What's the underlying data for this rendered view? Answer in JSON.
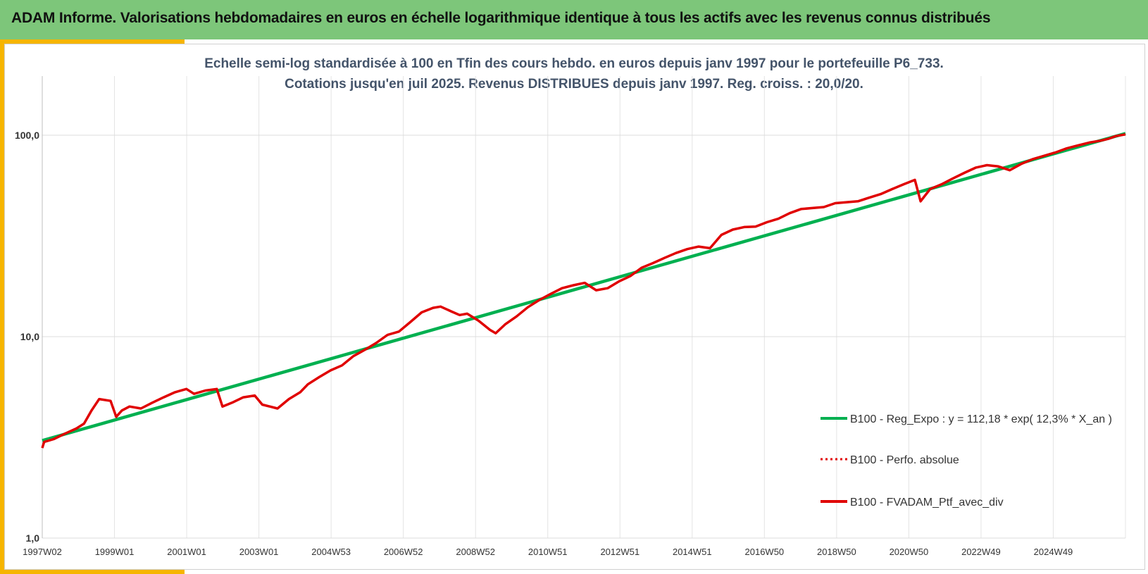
{
  "header": {
    "title": "ADAM Informe. Valorisations hebdomadaires en euros en échelle logarithmique identique à tous les actifs avec les revenus connus distribués"
  },
  "colors": {
    "banner": "#7dc67a",
    "accent": "#f6b500",
    "regression": "#00b050",
    "portfolio": "#e00000"
  },
  "chart_data": {
    "type": "line",
    "title_line1": "Echelle semi-log standardisée  à 100 en Tfin des cours hebdo.  en euros depuis janv 1997 pour le portefeuille P6_733.",
    "title_line2": "Cotations jusqu'en juil 2025. Revenus DISTRIBUES depuis janv 1997. Reg. croiss. : 20,0/20.",
    "y_scale": "log",
    "ylim": [
      1,
      100
    ],
    "y_ticks": [
      "1,0",
      "10,0",
      "100,0"
    ],
    "x_ticks": [
      "1997W02",
      "1999W01",
      "2001W01",
      "2003W01",
      "2004W53",
      "2006W52",
      "2008W52",
      "2010W51",
      "2012W51",
      "2014W51",
      "2016W50",
      "2018W50",
      "2020W50",
      "2022W49",
      "2024W49"
    ],
    "x_range": [
      1997.0,
      2025.55
    ],
    "grid": true,
    "legend_position": "bottom-right",
    "series": [
      {
        "name": "B100 - Reg_Expo : y = 112,18 * exp( 12,3% *  X_an )",
        "style": "solid",
        "x": [
          1997.0,
          2025.55
        ],
        "y": [
          3.05,
          102
        ]
      },
      {
        "name": "B100 - Perfo. absolue",
        "style": "dotted",
        "x": [],
        "y": []
      },
      {
        "name": "B100 - FVADAM_Ptf_avec_div",
        "style": "solid",
        "x": [
          1997.0,
          1997.05,
          1997.3,
          1997.6,
          1997.9,
          1998.1,
          1998.3,
          1998.5,
          1998.8,
          1998.95,
          1999.1,
          1999.3,
          1999.6,
          1999.9,
          2000.2,
          2000.5,
          2000.8,
          2001.0,
          2001.3,
          2001.6,
          2001.75,
          2002.0,
          2002.3,
          2002.6,
          2002.8,
          2003.0,
          2003.2,
          2003.5,
          2003.8,
          2004.0,
          2004.3,
          2004.6,
          2004.9,
          2005.2,
          2005.5,
          2005.8,
          2006.1,
          2006.4,
          2006.7,
          2007.0,
          2007.3,
          2007.5,
          2007.8,
          2008.0,
          2008.2,
          2008.5,
          2008.8,
          2008.95,
          2009.2,
          2009.5,
          2009.8,
          2010.1,
          2010.4,
          2010.7,
          2011.0,
          2011.3,
          2011.6,
          2011.9,
          2012.2,
          2012.5,
          2012.8,
          2013.1,
          2013.4,
          2013.7,
          2014.0,
          2014.3,
          2014.6,
          2014.9,
          2015.2,
          2015.5,
          2015.8,
          2016.1,
          2016.4,
          2016.7,
          2017.0,
          2017.3,
          2017.6,
          2017.9,
          2018.2,
          2018.5,
          2018.8,
          2019.1,
          2019.4,
          2019.7,
          2020.0,
          2020.15,
          2020.4,
          2020.7,
          2021.0,
          2021.3,
          2021.6,
          2021.9,
          2022.2,
          2022.5,
          2022.8,
          2023.1,
          2023.4,
          2023.7,
          2024.0,
          2024.3,
          2024.6,
          2024.9,
          2025.1,
          2025.3,
          2025.55
        ],
        "y": [
          2.8,
          3.0,
          3.1,
          3.3,
          3.5,
          3.7,
          4.3,
          4.9,
          4.8,
          4.0,
          4.3,
          4.5,
          4.4,
          4.7,
          5.0,
          5.3,
          5.5,
          5.2,
          5.4,
          5.5,
          4.5,
          4.7,
          5.0,
          5.1,
          4.6,
          4.5,
          4.4,
          4.9,
          5.3,
          5.8,
          6.3,
          6.8,
          7.2,
          8.0,
          8.6,
          9.3,
          10.2,
          10.6,
          11.8,
          13.2,
          13.9,
          14.1,
          13.3,
          12.8,
          13.0,
          12.0,
          10.8,
          10.4,
          11.5,
          12.6,
          14.0,
          15.2,
          16.3,
          17.4,
          18.0,
          18.5,
          17.0,
          17.4,
          18.8,
          20.0,
          22.0,
          23.2,
          24.6,
          26.0,
          27.2,
          28.0,
          27.5,
          32.0,
          34.0,
          35.0,
          35.2,
          37.0,
          38.5,
          41.0,
          43.0,
          43.5,
          44.0,
          46.0,
          46.5,
          47.0,
          49.0,
          51.0,
          54.0,
          57.0,
          60.0,
          47.0,
          54.0,
          57.0,
          61.0,
          65.0,
          69.0,
          71.0,
          70.0,
          67.0,
          72.0,
          76.0,
          79.0,
          82.0,
          86.0,
          89.0,
          92.0,
          94.0,
          96.0,
          99.0,
          101.0
        ]
      }
    ]
  }
}
